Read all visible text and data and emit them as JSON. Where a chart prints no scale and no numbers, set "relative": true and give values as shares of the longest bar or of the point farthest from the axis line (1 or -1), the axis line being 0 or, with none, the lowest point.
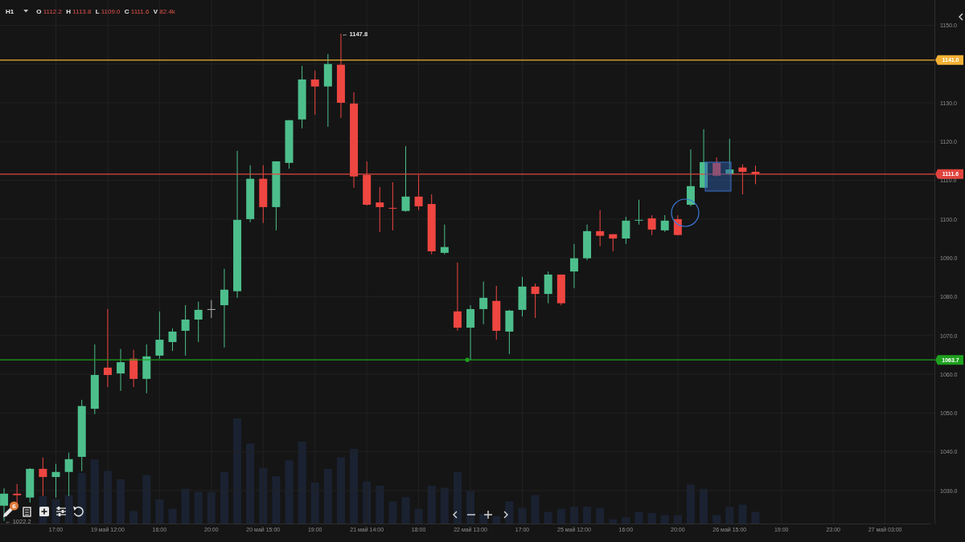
{
  "chart_data": [
    {
      "type": "candlestick",
      "title": "H1",
      "subtitle": "O 1112.2 H 1113.8 L 1109.0 C 1111.6 V 82.4k",
      "categories": [
        null,
        null,
        null,
        null,
        "17:00",
        null,
        null,
        null,
        "19 май 12:00",
        null,
        null,
        null,
        "16:00",
        null,
        null,
        null,
        "20:00",
        null,
        null,
        null,
        "20 май 15:00",
        null,
        null,
        null,
        "19:00",
        null,
        null,
        null,
        "21 май 14:00",
        null,
        null,
        null,
        "18:00",
        null,
        null,
        null,
        "22 май 13:00",
        null,
        null,
        null,
        "17:00",
        null,
        null,
        null,
        "25 май 12:00",
        null,
        null,
        null,
        "16:00",
        null,
        null,
        null,
        "20:00",
        null,
        null,
        null,
        "26 май 15:00",
        null,
        null,
        null,
        "19:00",
        null,
        null,
        null,
        "23:00",
        null,
        null,
        null,
        "27 май 03:00",
        null,
        null,
        null
      ],
      "ohlc": [
        [
          1026.1,
          1030.6,
          1022.2,
          1029.2
        ],
        [
          1029.2,
          1031.7,
          1026.7,
          1028.8
        ],
        [
          1028.2,
          1035.8,
          1026.9,
          1035.6
        ],
        [
          1035.6,
          1038.5,
          1028.6,
          1033.5
        ],
        [
          1033.5,
          1036.9,
          1028.2,
          1034.8
        ],
        [
          1034.8,
          1039.8,
          1028.6,
          1038.1
        ],
        [
          1038.7,
          1053.4,
          1035.0,
          1051.8
        ],
        [
          1051.1,
          1067.7,
          1049.7,
          1059.8
        ],
        [
          1061.7,
          1076.8,
          1056.7,
          1059.8
        ],
        [
          1060.2,
          1066.5,
          1055.7,
          1063.1
        ],
        [
          1064.0,
          1066.3,
          1056.7,
          1058.8
        ],
        [
          1058.8,
          1067.7,
          1055.1,
          1064.6
        ],
        [
          1064.8,
          1076.2,
          1064.0,
          1068.9
        ],
        [
          1068.3,
          1071.8,
          1066.0,
          1071.0
        ],
        [
          1071.2,
          1077.8,
          1064.8,
          1074.1
        ],
        [
          1074.1,
          1078.7,
          1068.3,
          1076.6
        ],
        [
          1076.8,
          1079.1,
          1074.5,
          1076.8
        ],
        [
          1077.8,
          1087.2,
          1066.9,
          1081.8
        ],
        [
          1081.4,
          1117.6,
          1079.7,
          1099.8
        ],
        [
          1100.0,
          1113.9,
          1099.2,
          1110.4
        ],
        [
          1110.4,
          1113.9,
          1099.0,
          1103.1
        ],
        [
          1103.1,
          1114.9,
          1097.1,
          1114.9
        ],
        [
          1114.5,
          1125.5,
          1113.0,
          1125.5
        ],
        [
          1125.7,
          1139.5,
          1123.4,
          1136.0
        ],
        [
          1136.0,
          1138.3,
          1126.9,
          1134.2
        ],
        [
          1134.2,
          1142.6,
          1123.8,
          1140.0
        ],
        [
          1139.8,
          1147.8,
          1126.1,
          1130.0
        ],
        [
          1129.8,
          1132.7,
          1108.1,
          1111.0
        ],
        [
          1111.4,
          1114.9,
          1103.5,
          1103.7
        ],
        [
          1104.3,
          1108.3,
          1096.7,
          1103.1
        ],
        [
          1102.9,
          1109.5,
          1097.1,
          1102.7
        ],
        [
          1102.1,
          1118.8,
          1101.9,
          1105.8
        ],
        [
          1105.8,
          1111.4,
          1102.3,
          1103.3
        ],
        [
          1103.9,
          1106.4,
          1090.9,
          1091.7
        ],
        [
          1091.3,
          1098.6,
          1090.9,
          1092.8
        ],
        [
          1076.2,
          1088.8,
          1071.2,
          1072.0
        ],
        [
          1072.0,
          1077.8,
          1063.7,
          1076.8
        ],
        [
          1076.8,
          1083.9,
          1072.9,
          1079.7
        ],
        [
          1078.9,
          1082.8,
          1068.9,
          1071.2
        ],
        [
          1071.0,
          1076.6,
          1065.2,
          1076.4
        ],
        [
          1076.6,
          1085.1,
          1074.9,
          1082.6
        ],
        [
          1082.6,
          1083.4,
          1074.5,
          1080.7
        ],
        [
          1080.7,
          1086.5,
          1078.3,
          1085.7
        ],
        [
          1085.7,
          1085.7,
          1077.8,
          1078.3
        ],
        [
          1086.5,
          1093.6,
          1082.2,
          1089.9
        ],
        [
          1089.9,
          1098.6,
          1089.4,
          1096.9
        ],
        [
          1096.9,
          1102.3,
          1093.0,
          1095.7
        ],
        [
          1096.1,
          1096.1,
          1091.7,
          1095.0
        ],
        [
          1095.0,
          1100.6,
          1093.6,
          1099.6
        ],
        [
          1099.6,
          1105.0,
          1098.6,
          1099.8
        ],
        [
          1100.2,
          1101.0,
          1095.9,
          1097.3
        ],
        [
          1097.1,
          1101.0,
          1096.7,
          1099.6
        ],
        [
          1100.0,
          1101.0,
          1095.8,
          1095.9
        ],
        [
          1103.7,
          1118.0,
          1103.3,
          1108.5
        ],
        [
          1108.1,
          1123.2,
          1108.0,
          1114.7
        ],
        [
          1114.5,
          1115.9,
          1111.0,
          1111.2
        ],
        [
          1111.6,
          1120.7,
          1111.4,
          1112.8
        ],
        [
          1113.3,
          1114.1,
          1106.4,
          1112.2
        ],
        [
          1112.2,
          1113.8,
          1109.0,
          1111.6
        ],
        null,
        null,
        null,
        null,
        null,
        null,
        null,
        null,
        null,
        null,
        null,
        null,
        null
      ],
      "colors": [
        "#4dbf8c",
        "#ef4641",
        "#4dbf8c",
        "#ef4641",
        "#4dbf8c",
        "#4dbf8c",
        "#4dbf8c",
        "#4dbf8c",
        "#ef4641",
        "#4dbf8c",
        "#ef4641",
        "#4dbf8c",
        "#4dbf8c",
        "#4dbf8c",
        "#4dbf8c",
        "#4dbf8c",
        "#b4b4b4",
        "#4dbf8c",
        "#4dbf8c",
        "#4dbf8c",
        "#ef4641",
        "#4dbf8c",
        "#4dbf8c",
        "#4dbf8c",
        "#ef4641",
        "#4dbf8c",
        "#ef4641",
        "#ef4641",
        "#ef4641",
        "#ef4641",
        "#ef4641",
        "#4dbf8c",
        "#ef4641",
        "#ef4641",
        "#4dbf8c",
        "#ef4641",
        "#4dbf8c",
        "#4dbf8c",
        "#ef4641",
        "#4dbf8c",
        "#4dbf8c",
        "#ef4641",
        "#4dbf8c",
        "#ef4641",
        "#4dbf8c",
        "#4dbf8c",
        "#ef4641",
        "#ef4641",
        "#4dbf8c",
        "#4dbf8c",
        "#ef4641",
        "#4dbf8c",
        "#ef4641",
        "#4dbf8c",
        "#4dbf8c",
        "#ef4641",
        "#4dbf8c",
        "#ef4641",
        "#ef4641",
        null,
        null,
        null,
        null,
        null,
        null,
        null,
        null,
        null,
        null,
        null,
        null,
        null
      ],
      "ylim": [
        1021.5,
        1156.5
      ],
      "yticks": [
        {
          "value": 1030,
          "label": "1030.0"
        },
        {
          "value": 1040,
          "label": "1040.0"
        },
        {
          "value": 1050,
          "label": "1050.0"
        },
        {
          "value": 1060,
          "label": "1060.0"
        },
        {
          "value": 1070,
          "label": "1070.0"
        },
        {
          "value": 1080,
          "label": "1080.0"
        },
        {
          "value": 1090,
          "label": "1090.0"
        },
        {
          "value": 1100,
          "label": "1100.0"
        },
        {
          "value": 1110,
          "label": "1110.0"
        },
        {
          "value": 1120,
          "label": "1120.0"
        },
        {
          "value": 1130,
          "label": "1130.0"
        },
        {
          "value": 1140,
          "label": null
        },
        {
          "value": 1150,
          "label": "1150.0"
        }
      ],
      "grid": true,
      "ref_lines": [
        {
          "axis": "y",
          "value": 1141.0,
          "label": "1141.0",
          "color": "#f2b134"
        },
        {
          "axis": "y",
          "value": 1111.6,
          "label": "1111.6",
          "color": "#e0443f"
        },
        {
          "axis": "y",
          "value": 1063.7,
          "label": "1063.7",
          "color": "#1ea01e"
        }
      ],
      "annotations": [
        "← 1147.8",
        "← 1022.2",
        "6"
      ]
    },
    {
      "type": "bar",
      "relative": true,
      "categories": [
        null,
        null,
        null,
        null,
        null,
        null,
        null,
        null,
        null,
        null,
        null,
        null,
        null,
        null,
        null,
        null,
        null,
        null,
        null,
        null,
        null,
        null,
        null,
        null,
        null,
        null,
        null,
        null,
        null,
        null,
        null,
        null,
        null,
        null,
        null,
        null,
        null,
        null,
        null,
        null,
        null,
        null,
        null,
        null,
        null,
        null,
        null,
        null,
        null,
        null,
        null,
        null,
        null,
        null,
        null,
        null,
        null,
        null,
        null,
        null,
        null,
        null,
        null,
        null,
        null,
        null,
        null,
        null,
        null,
        null,
        null,
        null
      ],
      "values": [
        null,
        null,
        null,
        0.26,
        0.23,
        0.27,
        0.48,
        0.61,
        0.5,
        0.42,
        0.12,
        0.46,
        0.23,
        0.14,
        0.33,
        0.3,
        0.3,
        0.49,
        1,
        0.76,
        0.53,
        0.45,
        0.6,
        0.78,
        0.39,
        0.52,
        0.63,
        0.71,
        0.4,
        0.36,
        0.21,
        0.25,
        0.14,
        0.36,
        0.34,
        0.49,
        0.31,
        0.09,
        0.07,
        0.21,
        0.15,
        0.27,
        0.11,
        0.14,
        0.16,
        0.16,
        0.15,
        0.04,
        0.06,
        0.11,
        0.1,
        0.08,
        0.08,
        0.37,
        0.33,
        0.08,
        0.16,
        0.18,
        0.11,
        null,
        null,
        null,
        null,
        null,
        null,
        null,
        null,
        null,
        null,
        null,
        null,
        null
      ],
      "color": "#1a2232",
      "tick_labels": false
    }
  ]
}
